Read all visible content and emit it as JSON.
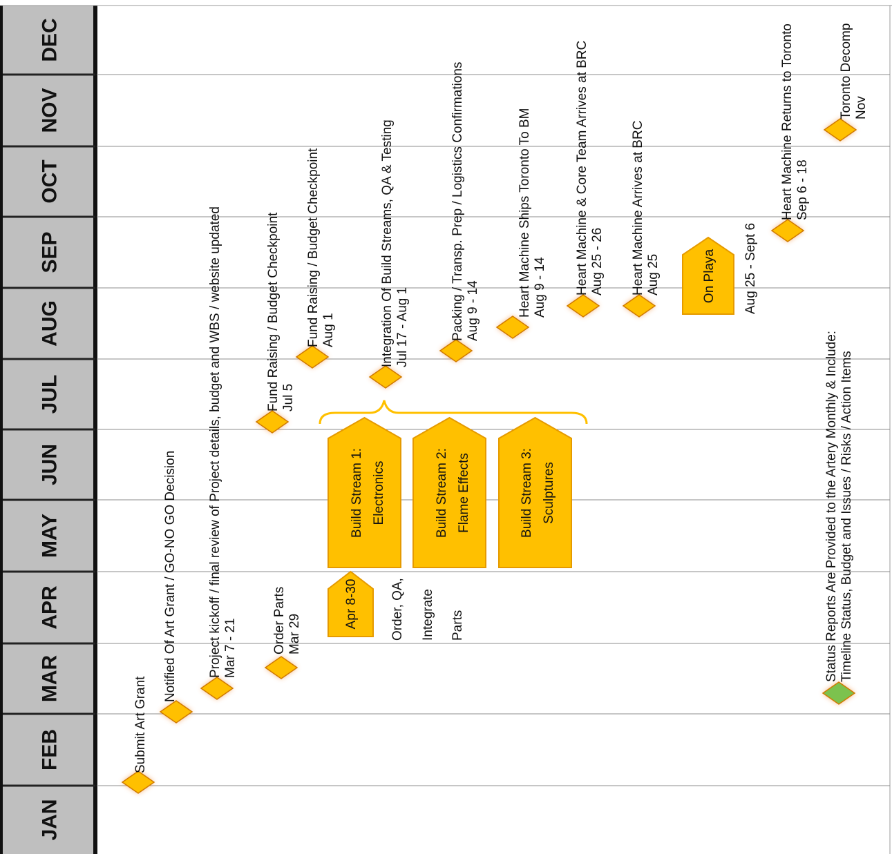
{
  "months": [
    "JAN",
    "FEB",
    "MAR",
    "APR",
    "MAY",
    "JUN",
    "JUL",
    "AUG",
    "SEP",
    "OCT",
    "NOV",
    "DEC"
  ],
  "colors": {
    "milestone_fill": "#FFC000",
    "milestone_glow": "#F4A460",
    "milestone_border": "#D07A00",
    "status_fill": "#7CC24E",
    "month_band": "#BFBFBF",
    "bracket": "#FFC000"
  },
  "events": [
    {
      "id": "submit-art-grant",
      "lines": [
        "Submit Art Grant"
      ]
    },
    {
      "id": "notified-art-grant",
      "lines": [
        "Notified Of Art Grant / GO-NO GO Decision"
      ]
    },
    {
      "id": "project-kickoff",
      "lines": [
        "Project kickoff / final review of Project details, budget and WBS / website updated",
        "Mar 7 - 21"
      ]
    },
    {
      "id": "order-parts",
      "lines": [
        "Order Parts",
        "Mar 29"
      ]
    },
    {
      "id": "fund-raising-1",
      "lines": [
        "Fund Raising / Budget Checkpoint",
        "Jul 5"
      ]
    },
    {
      "id": "fund-raising-2",
      "lines": [
        "Fund Raising / Budget Checkpoint",
        "Aug 1"
      ]
    },
    {
      "id": "integration",
      "lines": [
        "Integration Of Build Streams, QA & Testing",
        "Jul 17 - Aug 1"
      ]
    },
    {
      "id": "packing",
      "lines": [
        "Packing / Transp. Prep / Logistics Confirmations",
        "Aug 9 - 14"
      ]
    },
    {
      "id": "ships",
      "lines": [
        "Heart Machine Ships Toronto To BM",
        "Aug 9 - 14"
      ]
    },
    {
      "id": "core-team",
      "lines": [
        "Heart Machine & Core Team Arrives at BRC",
        "Aug 25 - 26"
      ]
    },
    {
      "id": "arrives-brc",
      "lines": [
        "Heart Machine Arrives at BRC",
        "Aug 25"
      ]
    },
    {
      "id": "returns-toronto",
      "lines": [
        "Heart Machine Returns to Toronto",
        "Sep 6 - 18"
      ]
    },
    {
      "id": "toronto-decomp",
      "lines": [
        "Toronto Decomp",
        "Nov"
      ]
    },
    {
      "id": "status-reports",
      "lines": [
        "Status Reports Are Provided to the Artery Monthly & Include:",
        "Timeline Status, Budget and Issues / Risks / Action Items"
      ]
    }
  ],
  "blocks": [
    {
      "id": "apr-block",
      "lines": [
        "Apr 8-30"
      ]
    },
    {
      "id": "build-stream-1",
      "lines": [
        "Build Stream 1:",
        "Electronics"
      ]
    },
    {
      "id": "build-stream-2",
      "lines": [
        "Build Stream 2:",
        "Flame Effects"
      ]
    },
    {
      "id": "build-stream-3",
      "lines": [
        "Build Stream 3:",
        "Sculptures"
      ]
    },
    {
      "id": "on-playa",
      "lines": [
        "On Playa"
      ]
    }
  ],
  "notes": [
    {
      "id": "order-qa-note",
      "lines": [
        "Order, QA,",
        "Integrate",
        "Parts"
      ]
    },
    {
      "id": "on-playa-dates",
      "lines": [
        "Aug 25 - Sept 6"
      ]
    }
  ]
}
